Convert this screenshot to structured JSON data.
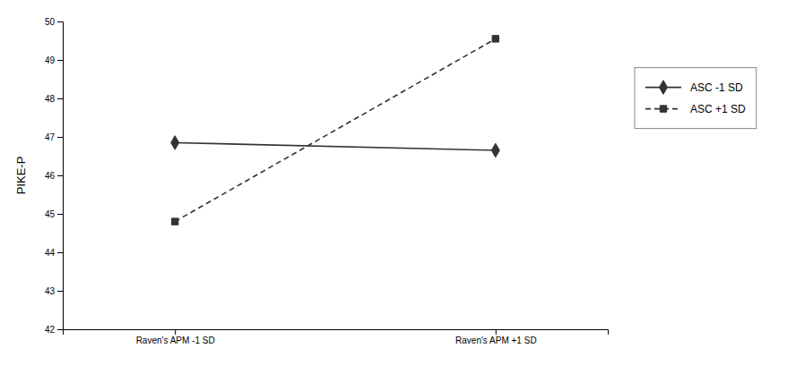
{
  "chart_data": {
    "type": "line",
    "categories": [
      "Raven's APM -1 SD",
      "Raven's APM +1 SD"
    ],
    "series": [
      {
        "name": "ASC -1 SD",
        "color": "#333333",
        "values": [
          46.85,
          46.65
        ],
        "marker": "diamond",
        "line_style": "solid"
      },
      {
        "name": "ASC +1 SD",
        "color": "#333333",
        "values": [
          44.8,
          49.55
        ],
        "marker": "square",
        "line_style": "dashed"
      }
    ],
    "ylabel": "PIKE-P",
    "ylim": [
      42,
      50
    ],
    "yticks": [
      42,
      43,
      44,
      45,
      46,
      47,
      48,
      49,
      50
    ],
    "grid": false,
    "legend": "right"
  }
}
